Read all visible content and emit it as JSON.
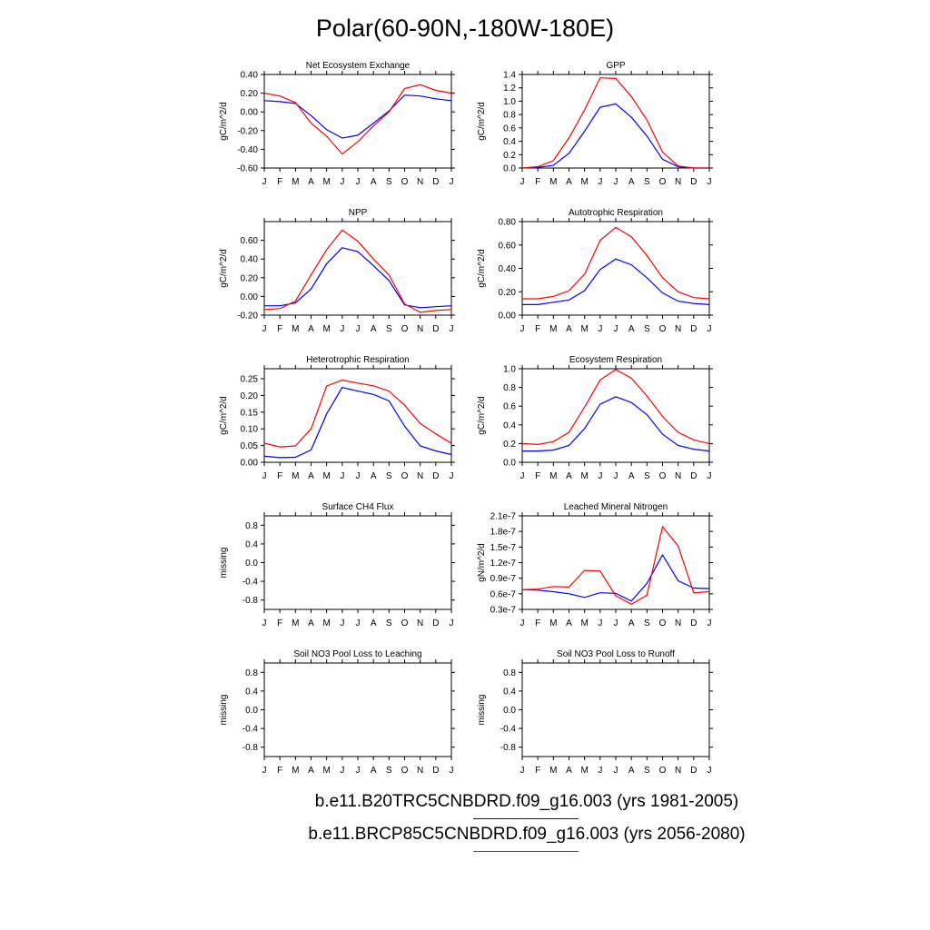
{
  "figure": {
    "title": "Polar(60-90N,-180W-180E)",
    "colors": {
      "series1": "#0000ff",
      "series2": "#ff0000"
    }
  },
  "legend": [
    {
      "label": "b.e11.B20TRC5CNBDRD.f09_g16.003 (yrs 1981-2005)",
      "color": "#0000ff"
    },
    {
      "label": "b.e11.BRCP85C5CNBDRD.f09_g16.003 (yrs 2056-2080)",
      "color": "#ff0000"
    }
  ],
  "chart_data": [
    {
      "type": "line",
      "title": "Net Ecosystem Exchange",
      "ylabel": "gC/m^2/d",
      "x": [
        "J",
        "F",
        "M",
        "A",
        "M",
        "J",
        "J",
        "A",
        "S",
        "O",
        "N",
        "D",
        "J"
      ],
      "ylim": [
        -0.6,
        0.4
      ],
      "yticks": [
        -0.6,
        -0.4,
        -0.2,
        0,
        0.2,
        0.4
      ],
      "ytick_labels": [
        "-0.60",
        "-0.40",
        "-0.20",
        "0.00",
        "0.20",
        "0.40"
      ],
      "series": [
        {
          "values": [
            0.12,
            0.11,
            0.09,
            -0.04,
            -0.19,
            -0.28,
            -0.25,
            -0.12,
            0.01,
            0.18,
            0.17,
            0.14,
            0.12
          ]
        },
        {
          "values": [
            0.2,
            0.17,
            0.1,
            -0.12,
            -0.26,
            -0.45,
            -0.32,
            -0.15,
            0.0,
            0.25,
            0.29,
            0.23,
            0.2
          ]
        }
      ]
    },
    {
      "type": "line",
      "title": "GPP",
      "ylabel": "gC/m^2/d",
      "x": [
        "J",
        "F",
        "M",
        "A",
        "M",
        "J",
        "J",
        "A",
        "S",
        "O",
        "N",
        "D",
        "J"
      ],
      "ylim": [
        0,
        1.4
      ],
      "yticks": [
        0,
        0.2,
        0.4,
        0.6,
        0.8,
        1.0,
        1.2,
        1.4
      ],
      "ytick_labels": [
        "0.0",
        "0.2",
        "0.4",
        "0.6",
        "0.8",
        "1.0",
        "1.2",
        "1.4"
      ],
      "series": [
        {
          "values": [
            0.0,
            0.01,
            0.04,
            0.22,
            0.55,
            0.91,
            0.96,
            0.76,
            0.48,
            0.13,
            0.02,
            0.0,
            0.0
          ]
        },
        {
          "values": [
            0.0,
            0.02,
            0.11,
            0.45,
            0.87,
            1.35,
            1.34,
            1.07,
            0.72,
            0.24,
            0.03,
            0.0,
            0.0
          ]
        }
      ]
    },
    {
      "type": "line",
      "title": "NPP",
      "ylabel": "gC/m^2/d",
      "x": [
        "J",
        "F",
        "M",
        "A",
        "M",
        "J",
        "J",
        "A",
        "S",
        "O",
        "N",
        "D",
        "J"
      ],
      "ylim": [
        -0.2,
        0.8
      ],
      "yticks": [
        -0.2,
        0,
        0.2,
        0.4,
        0.6
      ],
      "ytick_labels": [
        "-0.20",
        "0.00",
        "0.20",
        "0.40",
        "0.60"
      ],
      "series": [
        {
          "values": [
            -0.1,
            -0.1,
            -0.07,
            0.08,
            0.35,
            0.52,
            0.48,
            0.33,
            0.17,
            -0.09,
            -0.12,
            -0.11,
            -0.1
          ]
        },
        {
          "values": [
            -0.14,
            -0.13,
            -0.05,
            0.23,
            0.5,
            0.71,
            0.59,
            0.4,
            0.23,
            -0.08,
            -0.17,
            -0.15,
            -0.14
          ]
        }
      ]
    },
    {
      "type": "line",
      "title": "Autotrophic Respiration",
      "ylabel": "gC/m^2/d",
      "x": [
        "J",
        "F",
        "M",
        "A",
        "M",
        "J",
        "J",
        "A",
        "S",
        "O",
        "N",
        "D",
        "J"
      ],
      "ylim": [
        0,
        0.8
      ],
      "yticks": [
        0,
        0.2,
        0.4,
        0.6,
        0.8
      ],
      "ytick_labels": [
        "0.00",
        "0.20",
        "0.40",
        "0.60",
        "0.80"
      ],
      "series": [
        {
          "values": [
            0.09,
            0.09,
            0.11,
            0.13,
            0.21,
            0.39,
            0.48,
            0.43,
            0.32,
            0.19,
            0.12,
            0.1,
            0.09
          ]
        },
        {
          "values": [
            0.14,
            0.14,
            0.16,
            0.21,
            0.35,
            0.64,
            0.75,
            0.67,
            0.51,
            0.32,
            0.2,
            0.15,
            0.14
          ]
        }
      ]
    },
    {
      "type": "line",
      "title": "Heterotrophic Respiration",
      "ylabel": "gC/m^2/d",
      "x": [
        "J",
        "F",
        "M",
        "A",
        "M",
        "J",
        "J",
        "A",
        "S",
        "O",
        "N",
        "D",
        "J"
      ],
      "ylim": [
        0,
        0.28
      ],
      "yticks": [
        0,
        0.05,
        0.1,
        0.15,
        0.2,
        0.25
      ],
      "ytick_labels": [
        "0.00",
        "0.05",
        "0.10",
        "0.15",
        "0.20",
        "0.25"
      ],
      "series": [
        {
          "values": [
            0.018,
            0.014,
            0.015,
            0.037,
            0.145,
            0.224,
            0.213,
            0.203,
            0.184,
            0.108,
            0.049,
            0.034,
            0.023
          ]
        },
        {
          "values": [
            0.057,
            0.046,
            0.049,
            0.1,
            0.228,
            0.246,
            0.237,
            0.229,
            0.213,
            0.171,
            0.116,
            0.085,
            0.057
          ]
        }
      ]
    },
    {
      "type": "line",
      "title": "Ecosystem Respiration",
      "ylabel": "gC/m^2/d",
      "x": [
        "J",
        "F",
        "M",
        "A",
        "M",
        "J",
        "J",
        "A",
        "S",
        "O",
        "N",
        "D",
        "J"
      ],
      "ylim": [
        0,
        1.0
      ],
      "yticks": [
        0,
        0.2,
        0.4,
        0.6,
        0.8,
        1.0
      ],
      "ytick_labels": [
        "0.0",
        "0.2",
        "0.4",
        "0.6",
        "0.8",
        "1.0"
      ],
      "series": [
        {
          "values": [
            0.12,
            0.12,
            0.13,
            0.18,
            0.36,
            0.62,
            0.7,
            0.64,
            0.51,
            0.3,
            0.18,
            0.14,
            0.12
          ]
        },
        {
          "values": [
            0.2,
            0.19,
            0.22,
            0.32,
            0.59,
            0.88,
            0.99,
            0.9,
            0.71,
            0.49,
            0.32,
            0.24,
            0.2
          ]
        }
      ]
    },
    {
      "type": "line",
      "title": "Surface CH4 Flux",
      "ylabel": "missing",
      "x": [
        "J",
        "F",
        "M",
        "A",
        "M",
        "J",
        "J",
        "A",
        "S",
        "O",
        "N",
        "D",
        "J"
      ],
      "ylim": [
        -1.0,
        1.0
      ],
      "yticks": [
        -0.8,
        -0.4,
        0,
        0.4,
        0.8
      ],
      "ytick_labels": [
        "-0.8",
        "-0.4",
        "0.0",
        "0.4",
        "0.8"
      ],
      "series": []
    },
    {
      "type": "line",
      "title": "Leached Mineral Nitrogen",
      "ylabel": "gN/m^2/d",
      "x": [
        "J",
        "F",
        "M",
        "A",
        "M",
        "J",
        "J",
        "A",
        "S",
        "O",
        "N",
        "D",
        "J"
      ],
      "ylim": [
        3e-08,
        2.1e-07
      ],
      "yticks": [
        3e-08,
        6e-08,
        9e-08,
        1.2e-07,
        1.5e-07,
        1.8e-07,
        2.1e-07
      ],
      "ytick_labels": [
        "0.3e-7",
        "0.6e-7",
        "0.9e-7",
        "1.2e-7",
        "1.5e-7",
        "1.8e-7",
        "2.1e-7"
      ],
      "series": [
        {
          "values": [
            6.8e-08,
            6.7e-08,
            6.4e-08,
            6e-08,
            5.3e-08,
            6.2e-08,
            6.1e-08,
            4.6e-08,
            8e-08,
            1.35e-07,
            8.5e-08,
            7.1e-08,
            7e-08
          ]
        },
        {
          "values": [
            6.8e-08,
            6.9e-08,
            7.4e-08,
            7.3e-08,
            1.05e-07,
            1.04e-07,
            5.6e-08,
            4e-08,
            5.7e-08,
            1.89e-07,
            1.52e-07,
            6.2e-08,
            6.4e-08
          ]
        }
      ]
    },
    {
      "type": "line",
      "title": "Soil NO3 Pool Loss to Leaching",
      "ylabel": "missing",
      "x": [
        "J",
        "F",
        "M",
        "A",
        "M",
        "J",
        "J",
        "A",
        "S",
        "O",
        "N",
        "D",
        "J"
      ],
      "ylim": [
        -1.0,
        1.0
      ],
      "yticks": [
        -0.8,
        -0.4,
        0,
        0.4,
        0.8
      ],
      "ytick_labels": [
        "-0.8",
        "-0.4",
        "0.0",
        "0.4",
        "0.8"
      ],
      "series": []
    },
    {
      "type": "line",
      "title": "Soil NO3 Pool Loss to Runoff",
      "ylabel": "missing",
      "x": [
        "J",
        "F",
        "M",
        "A",
        "M",
        "J",
        "J",
        "A",
        "S",
        "O",
        "N",
        "D",
        "J"
      ],
      "ylim": [
        -1.0,
        1.0
      ],
      "yticks": [
        -0.8,
        -0.4,
        0,
        0.4,
        0.8
      ],
      "ytick_labels": [
        "-0.8",
        "-0.4",
        "0.0",
        "0.4",
        "0.8"
      ],
      "series": []
    }
  ]
}
